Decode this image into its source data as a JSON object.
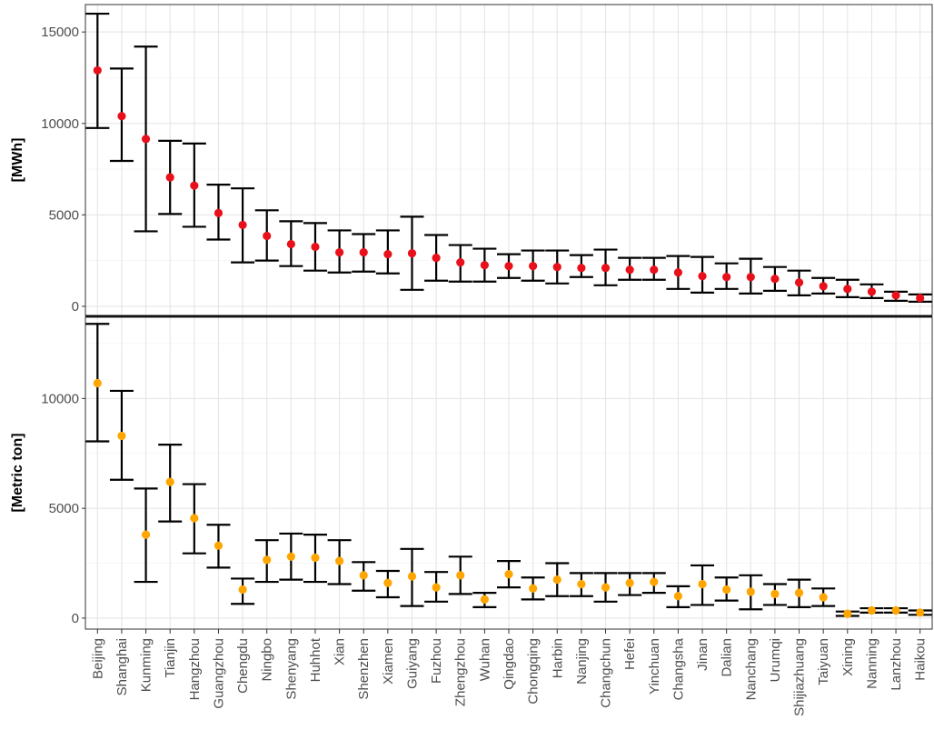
{
  "chart_data": [
    {
      "type": "scatter",
      "subtype": "point-with-errorbars",
      "ylabel": "[MWh]",
      "ylim": [
        -500,
        16500
      ],
      "yticks": [
        0,
        5000,
        10000,
        15000
      ],
      "point_color": "#e8101a",
      "grid": true,
      "categories": [
        "Beijing",
        "Shanghai",
        "Kunming",
        "Tianjin",
        "Hangzhou",
        "Guangzhou",
        "Chengdu",
        "Ningbo",
        "Shenyang",
        "Huhhot",
        "Xian",
        "Shenzhen",
        "Xiamen",
        "Guiyang",
        "Fuzhou",
        "Zhengzhou",
        "Wuhan",
        "Qingdao",
        "Chongqing",
        "Harbin",
        "Nanjing",
        "Changchun",
        "Hefei",
        "Yinchuan",
        "Changsha",
        "Jinan",
        "Dalian",
        "Nanchang",
        "Urumqi",
        "Shijiazhuang",
        "Taiyuan",
        "Xining",
        "Nanning",
        "Lanzhou",
        "Haikou"
      ],
      "values": [
        12900,
        10400,
        9150,
        7050,
        6600,
        5100,
        4450,
        3850,
        3400,
        3250,
        2950,
        2950,
        2850,
        2900,
        2650,
        2400,
        2250,
        2200,
        2200,
        2150,
        2100,
        2100,
        2000,
        2000,
        1850,
        1650,
        1600,
        1600,
        1500,
        1300,
        1100,
        950,
        800,
        600,
        450
      ],
      "lower": [
        9750,
        7950,
        4100,
        5050,
        4350,
        3650,
        2400,
        2500,
        2200,
        1950,
        1850,
        1900,
        1800,
        900,
        1400,
        1350,
        1350,
        1550,
        1400,
        1250,
        1600,
        1150,
        1450,
        1450,
        950,
        750,
        950,
        700,
        850,
        600,
        700,
        500,
        450,
        300,
        250
      ],
      "upper": [
        16000,
        13000,
        14200,
        9050,
        8900,
        6650,
        6450,
        5250,
        4650,
        4550,
        4150,
        3950,
        4150,
        4900,
        3900,
        3350,
        3150,
        2850,
        3050,
        3050,
        2800,
        3100,
        2650,
        2650,
        2750,
        2700,
        2350,
        2600,
        2150,
        1950,
        1550,
        1450,
        1200,
        800,
        650
      ]
    },
    {
      "type": "scatter",
      "subtype": "point-with-errorbars",
      "ylabel": "[Metric ton]",
      "ylim": [
        -500,
        13700
      ],
      "yticks": [
        0,
        5000,
        10000
      ],
      "point_color": "#ffa500",
      "grid": true,
      "categories": [
        "Beijing",
        "Shanghai",
        "Kunming",
        "Tianjin",
        "Hangzhou",
        "Guangzhou",
        "Chengdu",
        "Ningbo",
        "Shenyang",
        "Huhhot",
        "Xian",
        "Shenzhen",
        "Xiamen",
        "Guiyang",
        "Fuzhou",
        "Zhengzhou",
        "Wuhan",
        "Qingdao",
        "Chongqing",
        "Harbin",
        "Nanjing",
        "Changchun",
        "Hefei",
        "Yinchuan",
        "Changsha",
        "Jinan",
        "Dalian",
        "Nanchang",
        "Urumqi",
        "Shijiazhuang",
        "Taiyuan",
        "Xining",
        "Nanning",
        "Lanzhou",
        "Haikou"
      ],
      "values": [
        10700,
        8300,
        3800,
        6200,
        4550,
        3300,
        1300,
        2650,
        2800,
        2750,
        2600,
        1950,
        1600,
        1900,
        1400,
        1950,
        850,
        2000,
        1350,
        1750,
        1550,
        1400,
        1600,
        1650,
        1000,
        1550,
        1300,
        1200,
        1100,
        1150,
        950,
        200,
        350,
        350,
        250
      ],
      "lower": [
        8050,
        6300,
        1650,
        4400,
        2950,
        2300,
        650,
        1650,
        1750,
        1650,
        1550,
        1250,
        950,
        550,
        750,
        1100,
        500,
        1400,
        850,
        1000,
        1000,
        750,
        1050,
        1150,
        500,
        600,
        800,
        400,
        600,
        500,
        550,
        100,
        250,
        250,
        150
      ],
      "upper": [
        13400,
        10350,
        5900,
        7900,
        6100,
        4250,
        1800,
        3550,
        3850,
        3800,
        3550,
        2550,
        2150,
        3150,
        2100,
        2800,
        1150,
        2600,
        1850,
        2500,
        2050,
        2050,
        2050,
        2050,
        1450,
        2400,
        1850,
        1950,
        1550,
        1750,
        1350,
        300,
        450,
        450,
        350
      ]
    }
  ]
}
